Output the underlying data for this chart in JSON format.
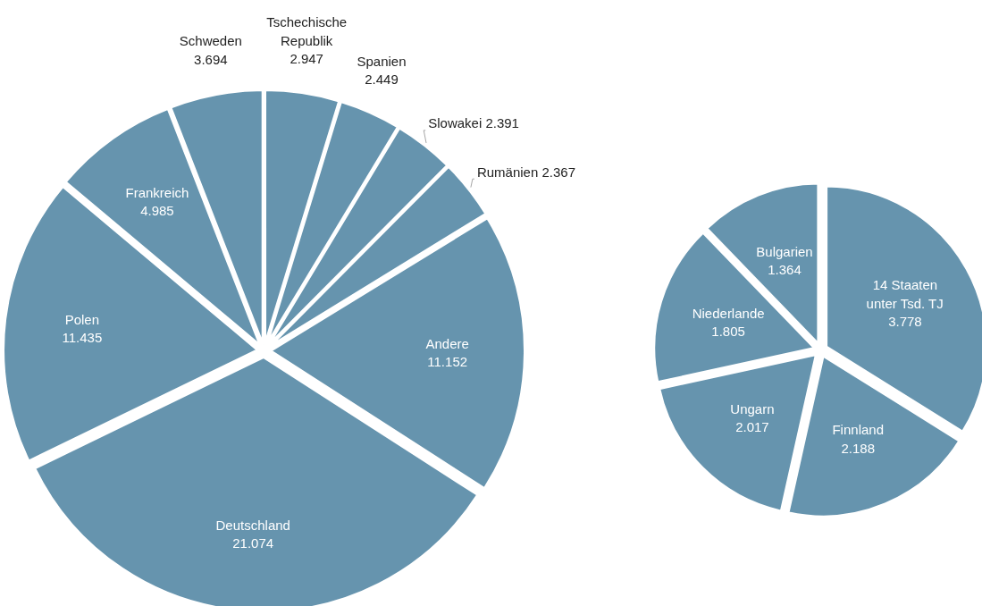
{
  "chart_data": [
    {
      "type": "pie",
      "categories": [
        "Tschechische Republik",
        "Spanien",
        "Slowakei",
        "Rumänien",
        "Andere",
        "Deutschland",
        "Polen",
        "Frankreich",
        "Schweden"
      ],
      "values": [
        2947,
        2449,
        2391,
        2367,
        11152,
        21074,
        11435,
        4985,
        3694
      ],
      "value_labels": [
        "2.947",
        "2.449",
        "2.391",
        "2.367",
        "11.152",
        "21.074",
        "11.435",
        "4.985",
        "3.694"
      ],
      "colors": [
        "#6694ae",
        "#6694ae",
        "#6694ae",
        "#6694ae",
        "#6694ae",
        "#6694ae",
        "#6694ae",
        "#6694ae",
        "#6694ae"
      ]
    },
    {
      "type": "pie",
      "categories": [
        "14 Staaten unter Tsd. TJ",
        "Finnland",
        "Ungarn",
        "Niederlande",
        "Bulgarien"
      ],
      "values": [
        3778,
        2188,
        2017,
        1805,
        1364
      ],
      "value_labels": [
        "3.778",
        "2.188",
        "2.017",
        "1.805",
        "1.364"
      ],
      "colors": [
        "#6694ae",
        "#6694ae",
        "#6694ae",
        "#6694ae",
        "#6694ae"
      ]
    }
  ]
}
